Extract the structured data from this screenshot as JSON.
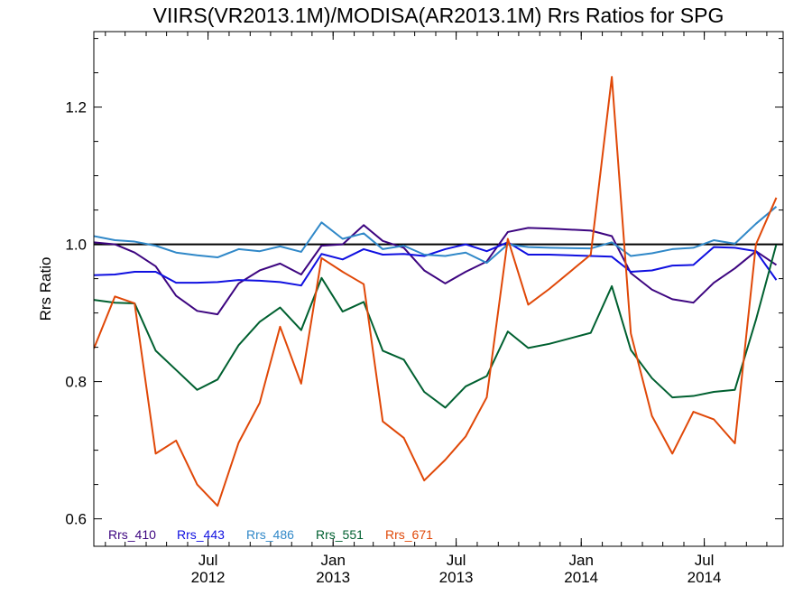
{
  "chart_data": {
    "type": "line",
    "title": "VIIRS(VR2013.1M)/MODISA(AR2013.1M)  Rrs Ratios for SPG",
    "xlabel": "",
    "ylabel": "Rrs Ratio",
    "xlim": [
      "2012-01-15",
      "2014-10-25"
    ],
    "ylim": [
      0.56,
      1.31
    ],
    "yticks": [
      0.6,
      0.8,
      1.0,
      1.2
    ],
    "ytick_labels": [
      "0.6",
      "0.8",
      "1.0",
      "1.2"
    ],
    "xticks": [
      {
        "x": "2012-07-01",
        "month": "Jul",
        "year": "2012"
      },
      {
        "x": "2013-01-01",
        "month": "Jan",
        "year": "2013"
      },
      {
        "x": "2013-07-01",
        "month": "Jul",
        "year": "2013"
      },
      {
        "x": "2014-01-01",
        "month": "Jan",
        "year": "2014"
      },
      {
        "x": "2014-07-01",
        "month": "Jul",
        "year": "2014"
      }
    ],
    "reference_line": {
      "y": 1.0,
      "color": "#000000"
    },
    "grid": false,
    "legend": {
      "placement": "bottom-left"
    },
    "x": [
      "2012-01-15",
      "2012-02-15",
      "2012-03-15",
      "2012-04-15",
      "2012-05-15",
      "2012-06-15",
      "2012-07-15",
      "2012-08-15",
      "2012-09-15",
      "2012-10-15",
      "2012-11-15",
      "2012-12-15",
      "2013-01-15",
      "2013-02-15",
      "2013-03-15",
      "2013-04-15",
      "2013-05-15",
      "2013-06-15",
      "2013-07-15",
      "2013-08-15",
      "2013-09-15",
      "2013-10-15",
      "2013-11-15",
      "2014-01-15",
      "2014-02-15",
      "2014-03-15",
      "2014-04-15",
      "2014-05-15",
      "2014-06-15",
      "2014-07-15",
      "2014-08-15",
      "2014-09-15",
      "2014-10-15"
    ],
    "series": [
      {
        "name": "Rrs_410",
        "color": "#3d0580",
        "values": [
          1.003,
          1.0,
          0.988,
          0.968,
          0.925,
          0.903,
          0.898,
          0.943,
          0.962,
          0.972,
          0.956,
          0.998,
          1.0,
          1.028,
          1.005,
          0.995,
          0.962,
          0.943,
          0.96,
          0.975,
          1.018,
          1.024,
          1.023,
          1.02,
          1.012,
          0.958,
          0.934,
          0.92,
          0.915,
          0.944,
          0.965,
          0.99,
          0.97
        ]
      },
      {
        "name": "Rrs_443",
        "color": "#1010e0",
        "values": [
          0.955,
          0.956,
          0.96,
          0.96,
          0.944,
          0.944,
          0.945,
          0.948,
          0.947,
          0.945,
          0.94,
          0.986,
          0.978,
          0.993,
          0.985,
          0.986,
          0.983,
          0.993,
          1.0,
          0.99,
          1.003,
          0.985,
          0.985,
          0.983,
          0.982,
          0.96,
          0.962,
          0.969,
          0.97,
          0.996,
          0.995,
          0.99,
          0.948
        ]
      },
      {
        "name": "Rrs_486",
        "color": "#3088c8",
        "values": [
          1.012,
          1.006,
          1.004,
          0.998,
          0.988,
          0.984,
          0.981,
          0.993,
          0.99,
          0.997,
          0.989,
          1.032,
          1.008,
          1.016,
          0.993,
          0.998,
          0.985,
          0.983,
          0.988,
          0.973,
          1.0,
          0.996,
          0.995,
          0.994,
          1.003,
          0.983,
          0.987,
          0.993,
          0.995,
          1.006,
          1.001,
          1.03,
          1.055
        ]
      },
      {
        "name": "Rrs_551",
        "color": "#006030",
        "values": [
          0.919,
          0.915,
          0.914,
          0.845,
          0.817,
          0.788,
          0.803,
          0.853,
          0.887,
          0.908,
          0.875,
          0.951,
          0.902,
          0.916,
          0.845,
          0.832,
          0.785,
          0.762,
          0.793,
          0.808,
          0.873,
          0.849,
          0.855,
          0.871,
          0.939,
          0.846,
          0.805,
          0.777,
          0.779,
          0.785,
          0.788,
          0.89,
          1.0
        ]
      },
      {
        "name": "Rrs_671",
        "color": "#e04808",
        "values": [
          0.848,
          0.924,
          0.914,
          0.695,
          0.714,
          0.65,
          0.619,
          0.711,
          0.769,
          0.88,
          0.797,
          0.98,
          0.96,
          0.942,
          0.742,
          0.718,
          0.656,
          0.686,
          0.72,
          0.777,
          1.008,
          0.912,
          0.935,
          0.985,
          1.244,
          0.87,
          0.75,
          0.695,
          0.756,
          0.745,
          0.71,
          1.0,
          1.068
        ]
      }
    ]
  }
}
